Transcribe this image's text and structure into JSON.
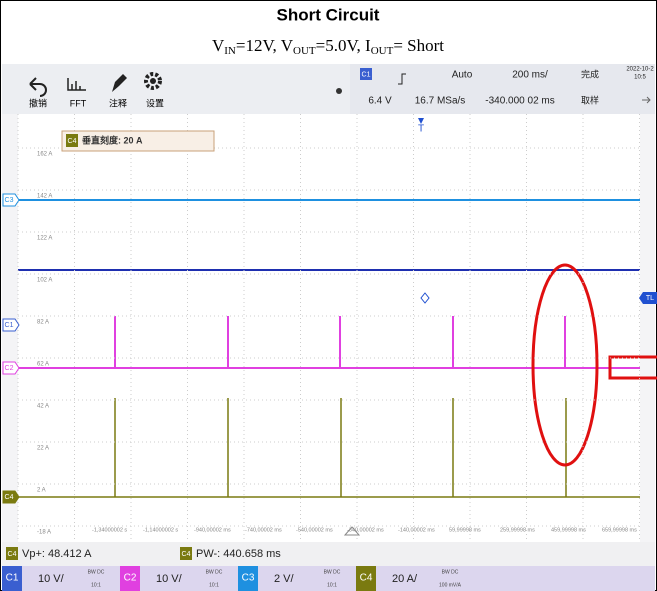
{
  "header": {
    "title": "Short Circuit",
    "subtitle": [
      "V",
      "IN",
      "=12V, V",
      "OUT",
      "=5.0V, I",
      "OUT",
      "= Short"
    ]
  },
  "toolbar": [
    "撤销",
    "FFT",
    "注释",
    "设置"
  ],
  "status": {
    "channel": "C1",
    "trigger_mode": "Auto",
    "timebase": "200 ms/",
    "state": "完成",
    "date": "2022-10-2",
    "time": "10:5",
    "trigger_level": "6.4 V",
    "sample_rate": "16.7 MSa/s",
    "delay": "-340.000 02 ms",
    "acquisition": "取样"
  },
  "screen": {
    "trigger_marker": "T",
    "scale_box": {
      "channel": "C4",
      "text": "垂直刻度: 20 A"
    },
    "y_labels": [
      "162 A",
      "142 A",
      "122 A",
      "102 A",
      "82 A",
      "62 A",
      "42 A",
      "22 A",
      "2 A",
      "-18 A"
    ],
    "x_labels": [
      "-1,34000002 s",
      "-1,14000002 s",
      "-940,00002 ms",
      "-740,00002 ms",
      "-540,00002 ms",
      "-340,00002 ms",
      "-140,00002 ms",
      "59,99998 ms",
      "259,99998 ms",
      "459,99998 ms",
      "659,99998 ms"
    ],
    "channel_markers": [
      "C3",
      "C1",
      "C2",
      "C4"
    ],
    "right_marker": "TL"
  },
  "measurements": [
    {
      "channel": "C4",
      "text": "Vp+: 48.412 A"
    },
    {
      "channel": "C4",
      "text": "PW-: 440.658 ms"
    }
  ],
  "channels": [
    {
      "name": "C1",
      "scale": "10 V/",
      "coupling": "BW DC",
      "probe": "10:1"
    },
    {
      "name": "C2",
      "scale": "10 V/",
      "coupling": "BW DC",
      "probe": "10:1"
    },
    {
      "name": "C3",
      "scale": "2 V/",
      "coupling": "BW DC",
      "probe": "10:1"
    },
    {
      "name": "C4",
      "scale": "20 A/",
      "coupling": "BW DC",
      "probe": "100 mV/A"
    }
  ]
}
